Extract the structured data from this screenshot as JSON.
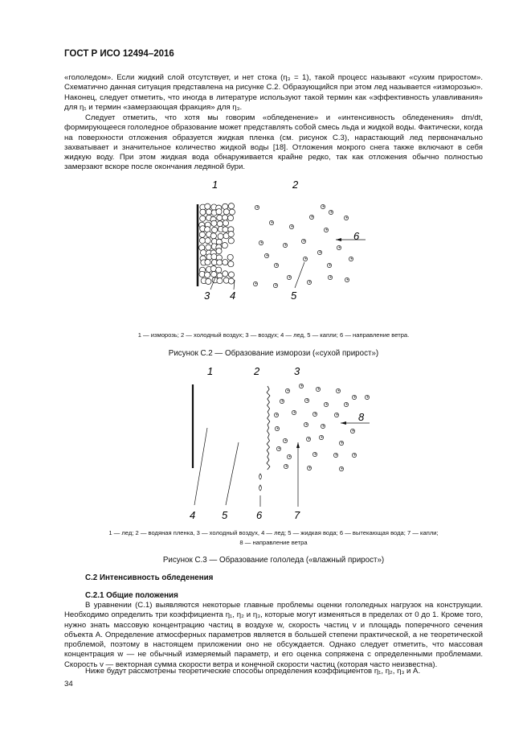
{
  "header": "ГОСТ Р ИСО 12494–2016",
  "paragraphs": [
    "«гололедом». Если жидкий слой отсутствует, и нет стока (η₃ = 1), такой процесс называют «сухим приростом». Схематично данная ситуация представлена на рисунке С.2. Образующийся при этом лед называется «изморозью». Наконец, следует отметить, что иногда в литературе используют такой термин как «эффективность улавливания» для η₁ и термин «замерзающая фракция» для η₃.",
    "Следует отметить, что хотя мы говорим «обледенение» и «интенсивность обледенения» dm/dt, формирующееся гололедное образование может представлять собой смесь льда и жидкой воды. Фактически, когда на поверхности отложения образуется жидкая пленка (см. рисунок С.3), нарастающий лед первоначально захватывает и значительное количество жидкой воды [18]. Отложения мокрого снега также включают в себя жидкую воду. При этом жидкая вода обнаруживается крайне редко, так как отложения обычно полностью замерзают вскоре после окончания ледяной бури."
  ],
  "figure_c2": {
    "labels": [
      "1",
      "2",
      "3",
      "4",
      "5",
      "6"
    ],
    "legend": "1 —  изморозь; 2 —  холодный воздух; 3 —  воздух; 4 —  лед, 5 —  капли; 6 — направление ветра.",
    "caption": "Рисунок С.2 — Образование изморози («сухой прирост»)"
  },
  "figure_c3": {
    "labels": [
      "1",
      "2",
      "3",
      "4",
      "5",
      "6",
      "7",
      "8"
    ],
    "legend_line1": "1 —  лед; 2 —  водяная пленка, 3 —  холодный воздух, 4 —  лед; 5 —  жидкая вода; 6 — вытекающая вода; 7 —  капли;",
    "legend_line2": "8 —  направление ветра",
    "caption": "Рисунок С.3 — Образование гололеда («влажный прирост»)"
  },
  "section": {
    "heading": "С.2 Интенсивность обледенения",
    "subheading": "С.2.1 Общие положения",
    "paragraphs": [
      "В уравнении (С.1) выявляются некоторые главные проблемы оценки гололедных нагрузок на конструкции. Необходимо определить три коэффициента η₁, η₂ и η₃, которые могут изменяться в пределах от 0 до 1. Кроме того, нужно знать массовую концентрацию частиц в воздухе w, скорость частиц v и площадь поперечного сечения объекта A. Определение атмосферных параметров является в большей степени практической, а не теоретической проблемой, поэтому в настоящем приложении оно не обсуждается. Однако следует отметить, что массовая концентрация w — не обычный измеряемый параметр, и его оценка сопряжена с определенными проблемами. Скорость v — векторная сумма скорости ветра и конечной скорости частиц (которая часто неизвестна).",
      "Ниже будут рассмотрены теоретические способы определения коэффициентов η₁, η₂, η₃ и A."
    ]
  },
  "page_number": "34"
}
